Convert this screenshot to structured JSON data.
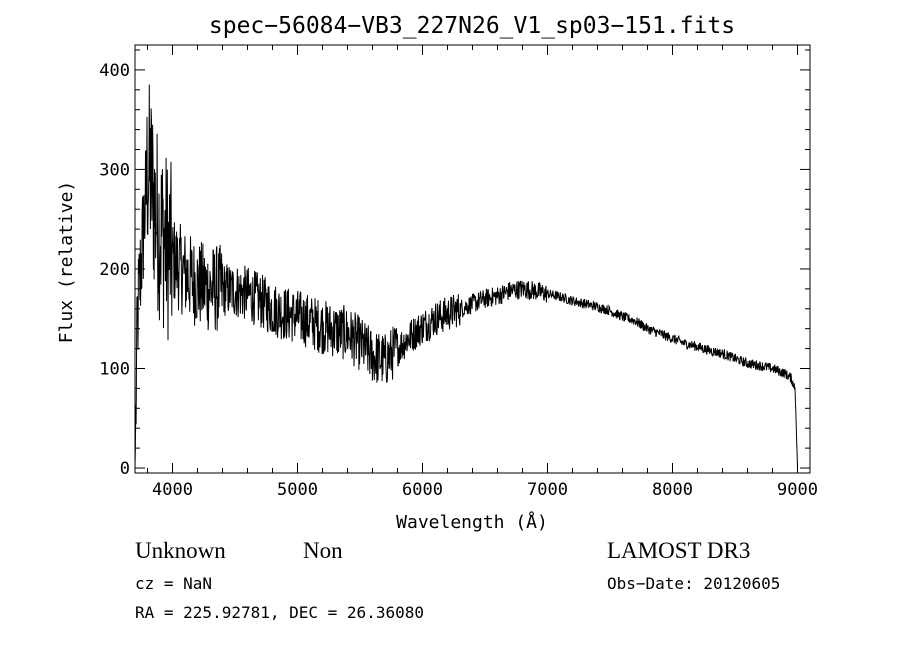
{
  "chart_data": {
    "type": "line",
    "title": "spec−56084−VB3_227N26_V1_sp03−151.fits",
    "xlabel": "Wavelength (Å)",
    "ylabel": "Flux (relative)",
    "xlim": [
      3700,
      9100
    ],
    "ylim": [
      -5,
      425
    ],
    "xticks": [
      4000,
      5000,
      6000,
      7000,
      8000,
      9000
    ],
    "yticks": [
      0,
      100,
      200,
      300,
      400
    ],
    "grid": false,
    "series": [
      {
        "name": "flux",
        "x": [
          3700,
          3720,
          3750,
          3780,
          3800,
          3830,
          3860,
          3900,
          3950,
          4000,
          4100,
          4200,
          4300,
          4400,
          4500,
          4600,
          4700,
          4800,
          4900,
          5000,
          5100,
          5200,
          5300,
          5400,
          5500,
          5600,
          5700,
          5800,
          5900,
          6000,
          6100,
          6200,
          6300,
          6400,
          6500,
          6600,
          6700,
          6800,
          6900,
          7000,
          7100,
          7200,
          7300,
          7400,
          7500,
          7600,
          7700,
          7800,
          7900,
          8000,
          8100,
          8200,
          8300,
          8400,
          8500,
          8600,
          8700,
          8800,
          8900,
          8950,
          8980,
          9000
        ],
        "y": [
          0,
          150,
          210,
          260,
          300,
          290,
          260,
          240,
          225,
          210,
          195,
          185,
          180,
          180,
          178,
          175,
          168,
          160,
          155,
          152,
          147,
          142,
          138,
          135,
          125,
          112,
          108,
          120,
          132,
          142,
          150,
          155,
          160,
          165,
          170,
          173,
          178,
          180,
          178,
          175,
          172,
          168,
          165,
          162,
          158,
          152,
          148,
          140,
          135,
          130,
          125,
          122,
          118,
          115,
          110,
          105,
          103,
          100,
          95,
          90,
          80,
          0
        ]
      }
    ]
  },
  "info": {
    "classification": "Unknown",
    "subclass": "Non",
    "cz": "cz = NaN",
    "radec": "RA = 225.92781, DEC =  26.36080",
    "survey": "LAMOST DR3",
    "obs_date": "Obs−Date: 20120605"
  }
}
